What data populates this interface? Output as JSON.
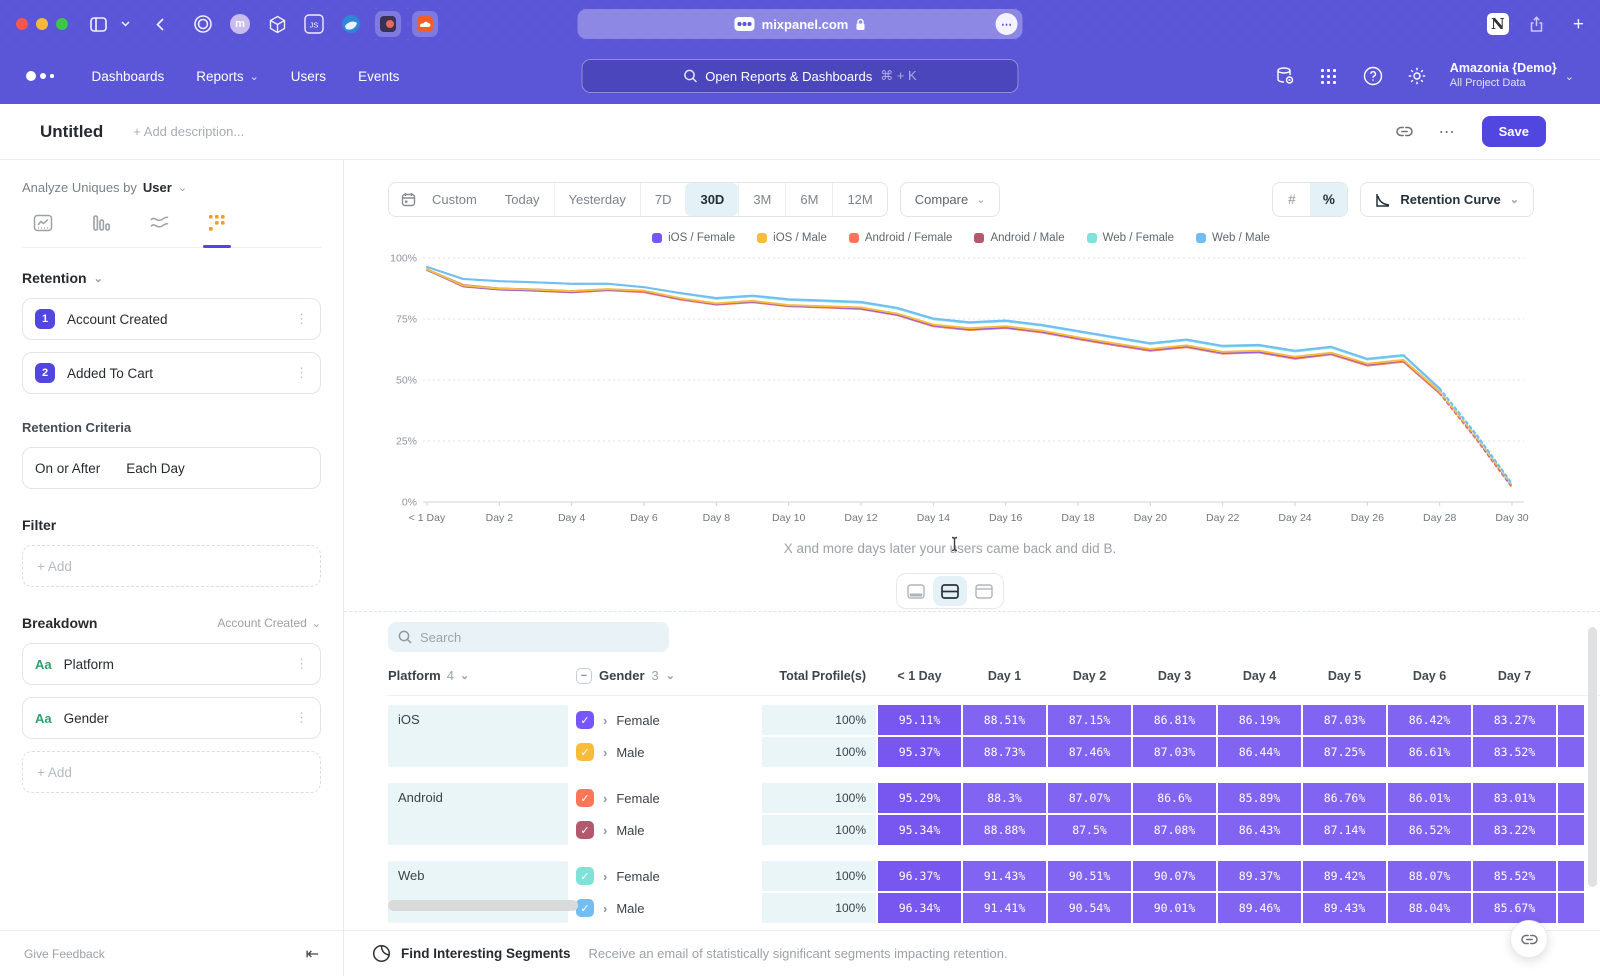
{
  "browser": {
    "url": "mixpanel.com"
  },
  "nav": {
    "items": [
      "Dashboards",
      "Reports",
      "Users",
      "Events"
    ],
    "dropdown_items": [
      "Reports"
    ],
    "search_placeholder": "Open Reports & Dashboards",
    "search_shortcut": "⌘ + K",
    "account_name": "Amazonia {Demo}",
    "account_scope": "All Project Data"
  },
  "report": {
    "title": "Untitled",
    "description_placeholder": "+ Add description...",
    "save": "Save"
  },
  "sidebar": {
    "analyze_label": "Analyze Uniques by",
    "analyze_value": "User",
    "section_retention": "Retention",
    "steps": [
      {
        "num": "1",
        "label": "Account Created"
      },
      {
        "num": "2",
        "label": "Added To Cart"
      }
    ],
    "criteria_label": "Retention Criteria",
    "criteria": {
      "left": "On or After",
      "right": "Each Day"
    },
    "filter_label": "Filter",
    "add_label": "+ Add",
    "breakdown_label": "Breakdown",
    "breakdown_scope": "Account Created",
    "breakdowns": [
      {
        "type": "Aa",
        "label": "Platform"
      },
      {
        "type": "Aa",
        "label": "Gender"
      }
    ],
    "feedback": "Give Feedback"
  },
  "toolbar": {
    "date_ranges": [
      "Custom",
      "Today",
      "Yesterday",
      "7D",
      "30D",
      "3M",
      "6M",
      "12M"
    ],
    "active_range": "30D",
    "compare": "Compare",
    "units": [
      "#",
      "%"
    ],
    "active_unit": "%",
    "view_selector": "Retention Curve"
  },
  "caption": "X and more days later your users came back and did B.",
  "chart_data": {
    "type": "line",
    "title": "Retention Curve — 30D",
    "ylim": [
      0,
      100
    ],
    "y_ticks": [
      "100%",
      "75%",
      "50%",
      "25%",
      "0%"
    ],
    "x_tick_labels": [
      "< 1 Day",
      "Day 2",
      "Day 4",
      "Day 6",
      "Day 8",
      "Day 10",
      "Day 12",
      "Day 14",
      "Day 16",
      "Day 18",
      "Day 20",
      "Day 22",
      "Day 24",
      "Day 26",
      "Day 28",
      "Day 30"
    ],
    "dashed_from_day": 28,
    "grid": "dashed-horizontal",
    "legend_position": "top-center",
    "series": [
      {
        "name": "iOS / Female",
        "color": "#7856FF",
        "values": [
          95.11,
          88.51,
          87.15,
          86.81,
          86.19,
          87.03,
          86.42,
          83.27,
          81.2,
          82.2,
          80.5,
          80.0,
          79.4,
          76.9,
          72.4,
          70.9,
          71.7,
          69.9,
          67.2,
          64.7,
          62.4,
          63.9,
          61.2,
          61.7,
          59.2,
          61.0,
          56.4,
          58.0,
          45.0,
          26.5,
          6.5
        ]
      },
      {
        "name": "iOS / Male",
        "color": "#F8BC3B",
        "values": [
          95.37,
          88.73,
          87.46,
          87.03,
          86.44,
          87.25,
          86.61,
          83.52,
          81.4,
          82.4,
          80.7,
          80.2,
          79.7,
          77.2,
          72.7,
          71.2,
          72.0,
          70.2,
          67.5,
          65.0,
          62.7,
          64.2,
          61.5,
          62.0,
          59.5,
          61.2,
          56.7,
          58.2,
          45.2,
          26.8,
          6.8
        ]
      },
      {
        "name": "Android / Female",
        "color": "#FF7557",
        "values": [
          95.29,
          88.3,
          87.07,
          86.6,
          85.89,
          86.76,
          86.01,
          83.01,
          80.9,
          81.9,
          80.2,
          79.7,
          79.1,
          76.6,
          72.0,
          70.5,
          71.3,
          69.5,
          66.8,
          64.3,
          62.0,
          63.5,
          60.8,
          61.3,
          58.7,
          60.5,
          55.9,
          57.5,
          44.5,
          26.0,
          6.0
        ]
      },
      {
        "name": "Android / Male",
        "color": "#B2596E",
        "values": [
          95.34,
          88.88,
          87.5,
          87.08,
          86.43,
          87.14,
          86.52,
          83.22,
          81.1,
          82.1,
          80.4,
          79.9,
          79.3,
          76.8,
          72.2,
          70.7,
          71.5,
          69.7,
          67.0,
          64.5,
          62.2,
          63.7,
          61.0,
          61.5,
          59.0,
          60.8,
          56.2,
          57.8,
          44.8,
          26.2,
          6.3
        ]
      },
      {
        "name": "Web / Female",
        "color": "#80E1D9",
        "values": [
          96.37,
          91.43,
          90.51,
          90.07,
          89.37,
          89.42,
          88.07,
          85.52,
          83.3,
          84.3,
          82.8,
          82.3,
          81.7,
          79.3,
          74.9,
          73.4,
          74.1,
          72.3,
          69.8,
          67.3,
          64.8,
          66.3,
          63.7,
          64.1,
          61.7,
          63.3,
          58.4,
          59.9,
          46.2,
          27.6,
          7.2
        ]
      },
      {
        "name": "Web / Male",
        "color": "#72BEF4",
        "values": [
          96.34,
          91.41,
          90.54,
          90.01,
          89.46,
          89.43,
          88.04,
          85.67,
          83.6,
          84.6,
          83.1,
          82.6,
          82.0,
          79.6,
          75.2,
          73.7,
          74.4,
          72.6,
          70.1,
          67.6,
          65.1,
          66.6,
          64.0,
          64.4,
          62.0,
          63.6,
          58.7,
          60.2,
          46.5,
          28.0,
          7.5
        ]
      }
    ]
  },
  "table": {
    "search_placeholder": "Search",
    "platform_header": {
      "label": "Platform",
      "count": "4"
    },
    "gender_header": {
      "label": "Gender",
      "count": "3"
    },
    "total_header": "Total Profile(s)",
    "day_headers": [
      "< 1 Day",
      "Day 1",
      "Day 2",
      "Day 3",
      "Day 4",
      "Day 5",
      "Day 6",
      "Day 7"
    ],
    "groups": [
      {
        "platform": "iOS",
        "rows": [
          {
            "gender": "Female",
            "color": "#7856FF",
            "total": "100%",
            "values": [
              "95.11%",
              "88.51%",
              "87.15%",
              "86.81%",
              "86.19%",
              "87.03%",
              "86.42%",
              "83.27%"
            ]
          },
          {
            "gender": "Male",
            "color": "#F8BC3B",
            "total": "100%",
            "values": [
              "95.37%",
              "88.73%",
              "87.46%",
              "87.03%",
              "86.44%",
              "87.25%",
              "86.61%",
              "83.52%"
            ]
          }
        ]
      },
      {
        "platform": "Android",
        "rows": [
          {
            "gender": "Female",
            "color": "#FF7557",
            "total": "100%",
            "values": [
              "95.29%",
              "88.3%",
              "87.07%",
              "86.6%",
              "85.89%",
              "86.76%",
              "86.01%",
              "83.01%"
            ]
          },
          {
            "gender": "Male",
            "color": "#B2596E",
            "total": "100%",
            "values": [
              "95.34%",
              "88.88%",
              "87.5%",
              "87.08%",
              "86.43%",
              "87.14%",
              "86.52%",
              "83.22%"
            ]
          }
        ]
      },
      {
        "platform": "Web",
        "rows": [
          {
            "gender": "Female",
            "color": "#80E1D9",
            "total": "100%",
            "values": [
              "96.37%",
              "91.43%",
              "90.51%",
              "90.07%",
              "89.37%",
              "89.42%",
              "88.07%",
              "85.52%"
            ]
          },
          {
            "gender": "Male",
            "color": "#72BEF4",
            "total": "100%",
            "values": [
              "96.34%",
              "91.41%",
              "90.54%",
              "90.01%",
              "89.46%",
              "89.43%",
              "88.04%",
              "85.67%"
            ]
          }
        ]
      }
    ]
  },
  "footer": {
    "title": "Find Interesting Segments",
    "subtitle": "Receive an email of statistically significant segments impacting retention."
  },
  "icons": {
    "chevron_down": "⌄",
    "chevron_right": "›",
    "back": "‹",
    "kebab": "⋮",
    "ellipsis": "…",
    "more": "⋯",
    "check": "✓",
    "minus": "−",
    "collapse": "⇤",
    "plus": "+",
    "n_logo": "N"
  },
  "colors": {
    "header_purple": "#5b55d8",
    "accent": "#5246e0",
    "active_segment_bg": "#e4f1f6",
    "cell_purple": "#8164f2",
    "cell_purple_first": "#7857f0",
    "tint_cell": "#eaf5f8"
  }
}
